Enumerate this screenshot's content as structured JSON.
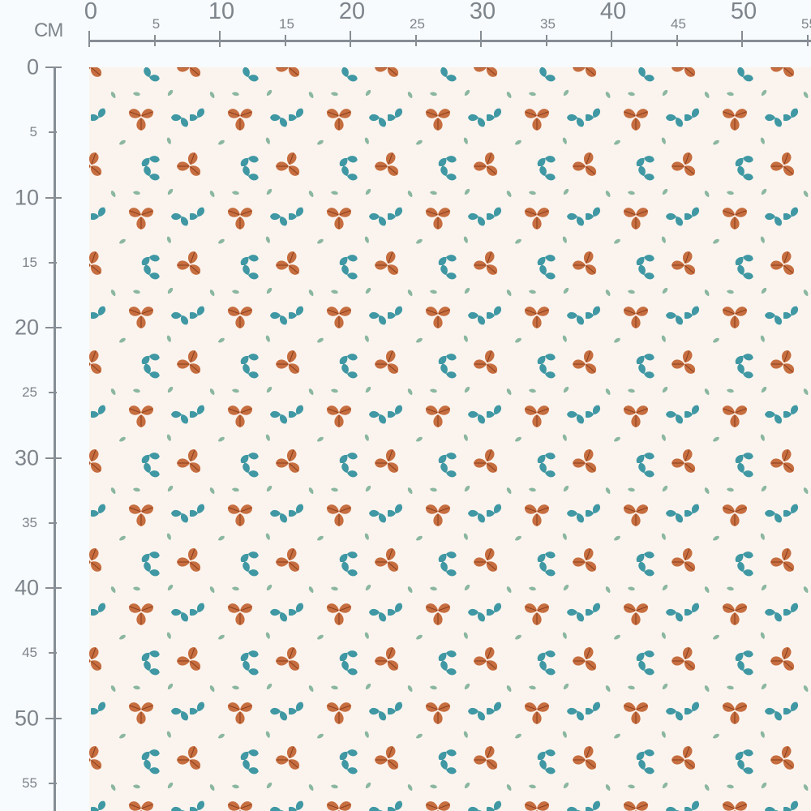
{
  "ruler": {
    "unit": "CM",
    "x_labels": [
      "0",
      "5",
      "10",
      "15",
      "20",
      "25",
      "30",
      "35",
      "40",
      "45",
      "50",
      "55"
    ],
    "y_labels": [
      "0",
      "5",
      "10",
      "15",
      "20",
      "25",
      "30",
      "35",
      "40",
      "45",
      "50",
      "55"
    ]
  },
  "fabric": {
    "background_color": "#fbf4ee",
    "motif_colors": {
      "rust": "#c0602e",
      "teal": "#2a8e9c",
      "sage": "#6fa88c"
    },
    "motifs": [
      "rust-leaf-trio",
      "teal-leaf-pair",
      "sage-leaf"
    ]
  }
}
